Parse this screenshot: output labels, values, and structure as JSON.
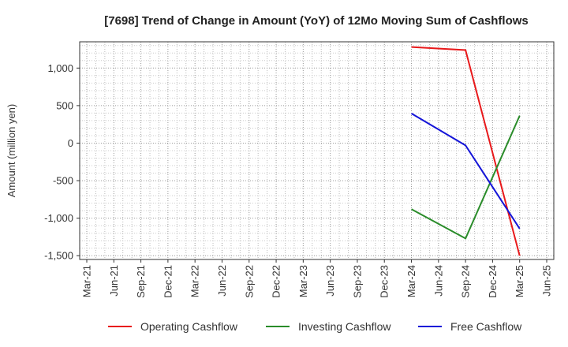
{
  "chart_data": {
    "type": "line",
    "title": "[7698]  Trend of Change in Amount (YoY) of 12Mo Moving Sum of Cashflows",
    "xlabel": "",
    "ylabel": "Amount (million yen)",
    "ylim": [
      -1550,
      1350
    ],
    "yticks": [
      1000,
      500,
      0,
      -500,
      -1000,
      -1500
    ],
    "ytick_labels": [
      "1,000",
      "500",
      "0",
      "-500",
      "-1,000",
      "-1,500"
    ],
    "x_ticks": [
      "Mar-21",
      "Jun-21",
      "Sep-21",
      "Dec-21",
      "Mar-22",
      "Jun-22",
      "Sep-22",
      "Dec-22",
      "Mar-23",
      "Jun-23",
      "Sep-23",
      "Dec-23",
      "Mar-24",
      "Jun-24",
      "Sep-24",
      "Dec-24",
      "Mar-25",
      "Jun-25"
    ],
    "x": [
      "Mar-24",
      "Sep-24",
      "Mar-25"
    ],
    "series": [
      {
        "name": "Operating Cashflow",
        "color": "#e8191b",
        "values": [
          1280,
          1240,
          -1500
        ]
      },
      {
        "name": "Investing Cashflow",
        "color": "#2a8c2a",
        "values": [
          -880,
          -1270,
          365
        ]
      },
      {
        "name": "Free Cashflow",
        "color": "#1414d8",
        "values": [
          395,
          -30,
          -1140
        ]
      }
    ],
    "grid": true,
    "legend_position": "bottom"
  }
}
